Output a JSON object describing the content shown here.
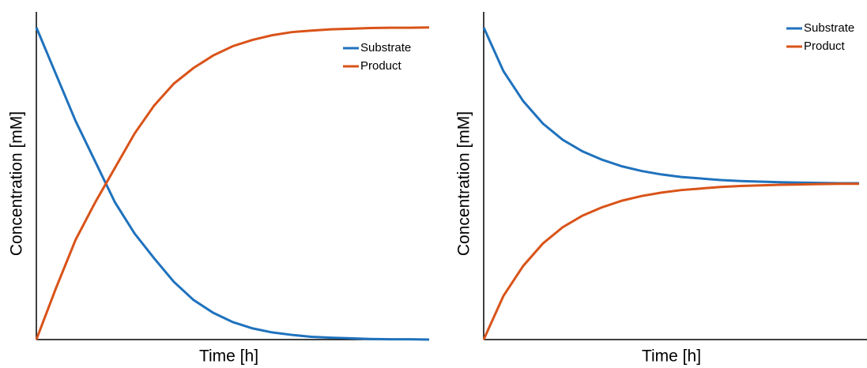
{
  "chart_data": [
    {
      "type": "line",
      "xlabel": "Time [h]",
      "ylabel": "Concentration [mM]",
      "legend": "upper right",
      "xlim": [
        0,
        20
      ],
      "ylim": [
        0,
        105
      ],
      "x": [
        0,
        1,
        2,
        3,
        4,
        5,
        6,
        7,
        8,
        9,
        10,
        11,
        12,
        13,
        14,
        15,
        16,
        17,
        18,
        19,
        20
      ],
      "series": [
        {
          "name": "Substrate",
          "color": "#1f72bd",
          "values": [
            100,
            85,
            70,
            57,
            44,
            34,
            26,
            18.5,
            12.7,
            8.6,
            5.6,
            3.6,
            2.3,
            1.5,
            0.9,
            0.6,
            0.4,
            0.2,
            0.1,
            0.1,
            0
          ]
        },
        {
          "name": "Product",
          "color": "#d95319",
          "values": [
            0,
            16.5,
            32,
            44,
            55,
            66,
            75,
            82,
            87,
            91,
            94,
            96,
            97.5,
            98.5,
            99,
            99.4,
            99.6,
            99.8,
            99.9,
            99.9,
            100
          ]
        }
      ]
    },
    {
      "type": "line",
      "xlabel": "Time [h]",
      "ylabel": "Concentration [mM]",
      "legend": "upper right",
      "xlim": [
        0,
        19.4
      ],
      "ylim": [
        0,
        105
      ],
      "x": [
        0,
        1,
        2,
        3,
        4,
        5,
        6,
        7,
        8,
        9,
        10,
        11,
        12,
        13,
        14,
        15,
        16,
        17,
        18,
        19
      ],
      "series": [
        {
          "name": "Substrate",
          "color": "#1f72bd",
          "values": [
            100,
            86,
            76.4,
            69.2,
            64,
            60.3,
            57.6,
            55.5,
            54,
            52.9,
            52.1,
            51.6,
            51.1,
            50.8,
            50.6,
            50.4,
            50.3,
            50.2,
            50.1,
            50.1
          ]
        },
        {
          "name": "Product",
          "color": "#d95319",
          "values": [
            0,
            14,
            23.6,
            30.8,
            36,
            39.7,
            42.4,
            44.5,
            46,
            47.1,
            47.9,
            48.4,
            48.9,
            49.2,
            49.4,
            49.6,
            49.7,
            49.8,
            49.9,
            49.9
          ]
        }
      ]
    }
  ]
}
